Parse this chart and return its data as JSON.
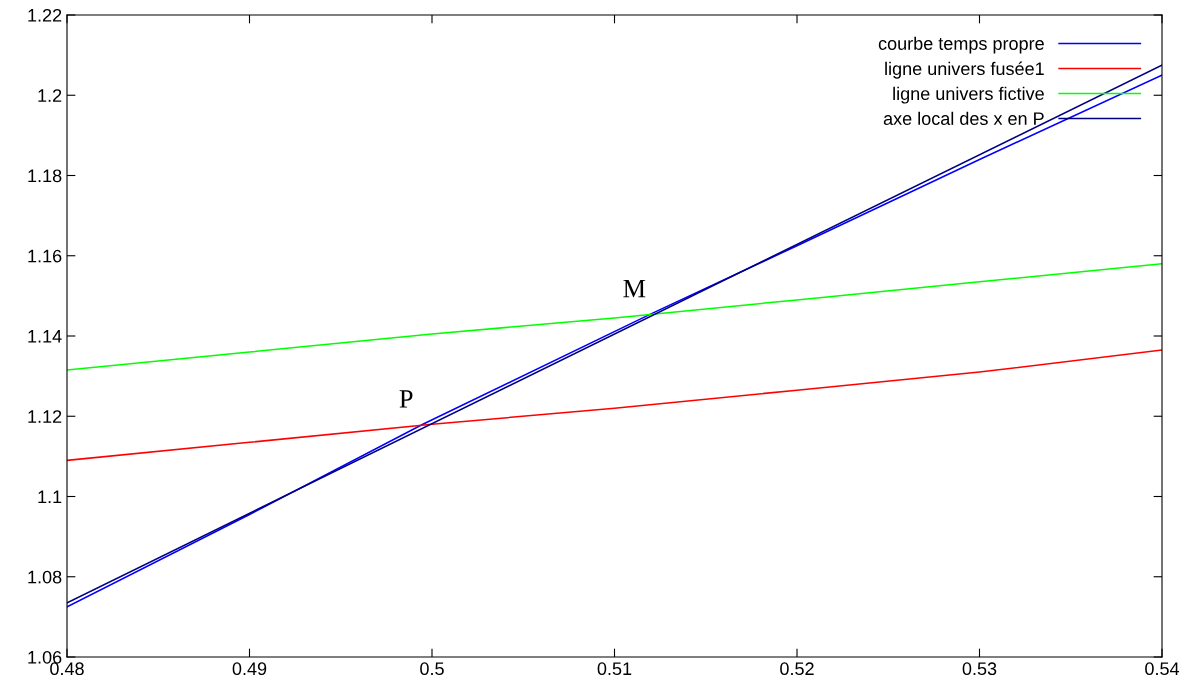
{
  "chart_data": {
    "type": "line",
    "xlim": [
      0.48,
      0.54
    ],
    "xticks": [
      0.48,
      0.49,
      0.5,
      0.51,
      0.52,
      0.53,
      0.54
    ],
    "ylim": [
      1.06,
      1.22
    ],
    "yticks": [
      1.06,
      1.08,
      1.1,
      1.12,
      1.14,
      1.16,
      1.18,
      1.2,
      1.22
    ],
    "grid": false,
    "legend": "top right",
    "marker": "none",
    "line_style": "solid",
    "series": [
      {
        "name": "courbe temps propre",
        "color": "#0000ff",
        "x": [
          0.48,
          0.49,
          0.4995,
          0.512,
          0.52,
          0.53,
          0.54
        ],
        "values": [
          1.0725,
          1.0955,
          1.118,
          1.1455,
          1.1625,
          1.184,
          1.205
        ]
      },
      {
        "name": "ligne univers fusée1",
        "color": "#ff0000",
        "x": [
          0.48,
          0.49,
          0.5,
          0.51,
          0.52,
          0.53,
          0.54
        ],
        "values": [
          1.109,
          1.1135,
          1.118,
          1.122,
          1.1265,
          1.131,
          1.1365
        ]
      },
      {
        "name": "ligne univers fictive",
        "color": "#00ff00",
        "x": [
          0.48,
          0.49,
          0.5,
          0.51,
          0.52,
          0.53,
          0.54
        ],
        "values": [
          1.1315,
          1.136,
          1.1405,
          1.1445,
          1.149,
          1.1535,
          1.158
        ]
      },
      {
        "name": "axe local des x en P",
        "color": "#000080",
        "x": [
          0.48,
          0.54
        ],
        "values": [
          1.0735,
          1.2075
        ]
      }
    ],
    "annotations": [
      {
        "text": "P",
        "x": 0.4995,
        "y": 1.118
      },
      {
        "text": "M",
        "x": 0.512,
        "y": 1.1455
      }
    ]
  }
}
